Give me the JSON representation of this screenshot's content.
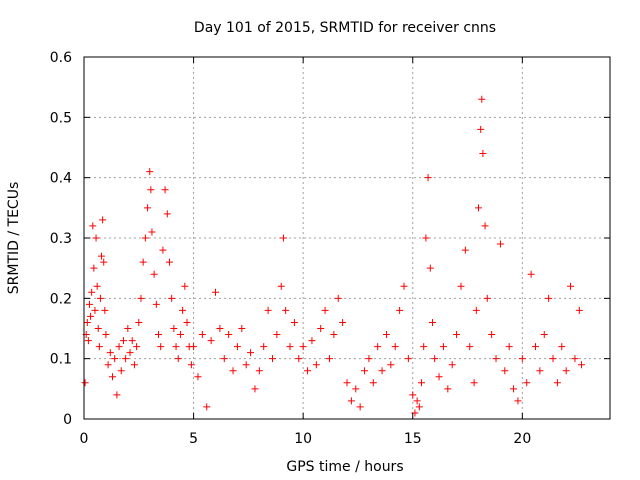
{
  "chart_data": {
    "type": "scatter",
    "title": "Day 101 of 2015, SRMTID for receiver cnns",
    "xlabel": "GPS time / hours",
    "ylabel": "SRMTID / TECUs",
    "xlim": [
      0,
      24
    ],
    "ylim": [
      0,
      0.6
    ],
    "xticks": [
      "0",
      "5",
      "10",
      "15",
      "20"
    ],
    "yticks": [
      "0",
      "0.1",
      "0.2",
      "0.3",
      "0.4",
      "0.5",
      "0.6"
    ],
    "grid": true,
    "marker": "+",
    "color": "#ff0000",
    "series": [
      {
        "name": "SRMTID",
        "points": [
          [
            0.05,
            0.06
          ],
          [
            0.1,
            0.14
          ],
          [
            0.15,
            0.16
          ],
          [
            0.2,
            0.13
          ],
          [
            0.25,
            0.19
          ],
          [
            0.3,
            0.17
          ],
          [
            0.35,
            0.21
          ],
          [
            0.4,
            0.32
          ],
          [
            0.45,
            0.25
          ],
          [
            0.5,
            0.18
          ],
          [
            0.55,
            0.3
          ],
          [
            0.6,
            0.22
          ],
          [
            0.65,
            0.15
          ],
          [
            0.7,
            0.12
          ],
          [
            0.75,
            0.2
          ],
          [
            0.8,
            0.27
          ],
          [
            0.85,
            0.33
          ],
          [
            0.9,
            0.26
          ],
          [
            0.95,
            0.18
          ],
          [
            1.0,
            0.14
          ],
          [
            1.1,
            0.09
          ],
          [
            1.2,
            0.11
          ],
          [
            1.3,
            0.07
          ],
          [
            1.4,
            0.1
          ],
          [
            1.5,
            0.04
          ],
          [
            1.6,
            0.12
          ],
          [
            1.7,
            0.08
          ],
          [
            1.8,
            0.13
          ],
          [
            1.9,
            0.1
          ],
          [
            2.0,
            0.15
          ],
          [
            2.1,
            0.11
          ],
          [
            2.2,
            0.13
          ],
          [
            2.3,
            0.09
          ],
          [
            2.4,
            0.12
          ],
          [
            2.5,
            0.16
          ],
          [
            2.6,
            0.2
          ],
          [
            2.7,
            0.26
          ],
          [
            2.8,
            0.3
          ],
          [
            2.9,
            0.35
          ],
          [
            3.0,
            0.41
          ],
          [
            3.05,
            0.38
          ],
          [
            3.1,
            0.31
          ],
          [
            3.2,
            0.24
          ],
          [
            3.3,
            0.19
          ],
          [
            3.4,
            0.14
          ],
          [
            3.5,
            0.12
          ],
          [
            3.6,
            0.28
          ],
          [
            3.7,
            0.38
          ],
          [
            3.8,
            0.34
          ],
          [
            3.9,
            0.26
          ],
          [
            4.0,
            0.2
          ],
          [
            4.1,
            0.15
          ],
          [
            4.2,
            0.12
          ],
          [
            4.3,
            0.1
          ],
          [
            4.4,
            0.14
          ],
          [
            4.5,
            0.18
          ],
          [
            4.6,
            0.22
          ],
          [
            4.7,
            0.16
          ],
          [
            4.8,
            0.12
          ],
          [
            4.9,
            0.09
          ],
          [
            5.0,
            0.12
          ],
          [
            5.2,
            0.07
          ],
          [
            5.4,
            0.14
          ],
          [
            5.6,
            0.02
          ],
          [
            5.8,
            0.13
          ],
          [
            6.0,
            0.21
          ],
          [
            6.2,
            0.15
          ],
          [
            6.4,
            0.1
          ],
          [
            6.6,
            0.14
          ],
          [
            6.8,
            0.08
          ],
          [
            7.0,
            0.12
          ],
          [
            7.2,
            0.15
          ],
          [
            7.4,
            0.09
          ],
          [
            7.6,
            0.11
          ],
          [
            7.8,
            0.05
          ],
          [
            8.0,
            0.08
          ],
          [
            8.2,
            0.12
          ],
          [
            8.4,
            0.18
          ],
          [
            8.6,
            0.1
          ],
          [
            8.8,
            0.14
          ],
          [
            9.0,
            0.22
          ],
          [
            9.1,
            0.3
          ],
          [
            9.2,
            0.18
          ],
          [
            9.4,
            0.12
          ],
          [
            9.6,
            0.16
          ],
          [
            9.8,
            0.1
          ],
          [
            10.0,
            0.12
          ],
          [
            10.2,
            0.08
          ],
          [
            10.4,
            0.13
          ],
          [
            10.6,
            0.09
          ],
          [
            10.8,
            0.15
          ],
          [
            11.0,
            0.18
          ],
          [
            11.2,
            0.1
          ],
          [
            11.4,
            0.14
          ],
          [
            11.6,
            0.2
          ],
          [
            11.8,
            0.16
          ],
          [
            12.0,
            0.06
          ],
          [
            12.2,
            0.03
          ],
          [
            12.4,
            0.05
          ],
          [
            12.6,
            0.02
          ],
          [
            12.8,
            0.08
          ],
          [
            13.0,
            0.1
          ],
          [
            13.2,
            0.06
          ],
          [
            13.4,
            0.12
          ],
          [
            13.6,
            0.08
          ],
          [
            13.8,
            0.14
          ],
          [
            14.0,
            0.09
          ],
          [
            14.2,
            0.12
          ],
          [
            14.4,
            0.18
          ],
          [
            14.6,
            0.22
          ],
          [
            14.8,
            0.1
          ],
          [
            15.0,
            0.04
          ],
          [
            15.1,
            0.01
          ],
          [
            15.2,
            0.03
          ],
          [
            15.3,
            0.02
          ],
          [
            15.4,
            0.06
          ],
          [
            15.5,
            0.12
          ],
          [
            15.6,
            0.3
          ],
          [
            15.7,
            0.4
          ],
          [
            15.8,
            0.25
          ],
          [
            15.9,
            0.16
          ],
          [
            16.0,
            0.1
          ],
          [
            16.2,
            0.07
          ],
          [
            16.4,
            0.12
          ],
          [
            16.6,
            0.05
          ],
          [
            16.8,
            0.09
          ],
          [
            17.0,
            0.14
          ],
          [
            17.2,
            0.22
          ],
          [
            17.4,
            0.28
          ],
          [
            17.6,
            0.12
          ],
          [
            17.8,
            0.06
          ],
          [
            17.9,
            0.18
          ],
          [
            18.0,
            0.35
          ],
          [
            18.1,
            0.48
          ],
          [
            18.15,
            0.53
          ],
          [
            18.2,
            0.44
          ],
          [
            18.3,
            0.32
          ],
          [
            18.4,
            0.2
          ],
          [
            18.6,
            0.14
          ],
          [
            18.8,
            0.1
          ],
          [
            19.0,
            0.29
          ],
          [
            19.2,
            0.08
          ],
          [
            19.4,
            0.12
          ],
          [
            19.6,
            0.05
          ],
          [
            19.8,
            0.03
          ],
          [
            20.0,
            0.1
          ],
          [
            20.2,
            0.06
          ],
          [
            20.4,
            0.24
          ],
          [
            20.6,
            0.12
          ],
          [
            20.8,
            0.08
          ],
          [
            21.0,
            0.14
          ],
          [
            21.2,
            0.2
          ],
          [
            21.4,
            0.1
          ],
          [
            21.6,
            0.06
          ],
          [
            21.8,
            0.12
          ],
          [
            22.0,
            0.08
          ],
          [
            22.2,
            0.22
          ],
          [
            22.4,
            0.1
          ],
          [
            22.6,
            0.18
          ],
          [
            22.7,
            0.09
          ]
        ]
      }
    ]
  }
}
